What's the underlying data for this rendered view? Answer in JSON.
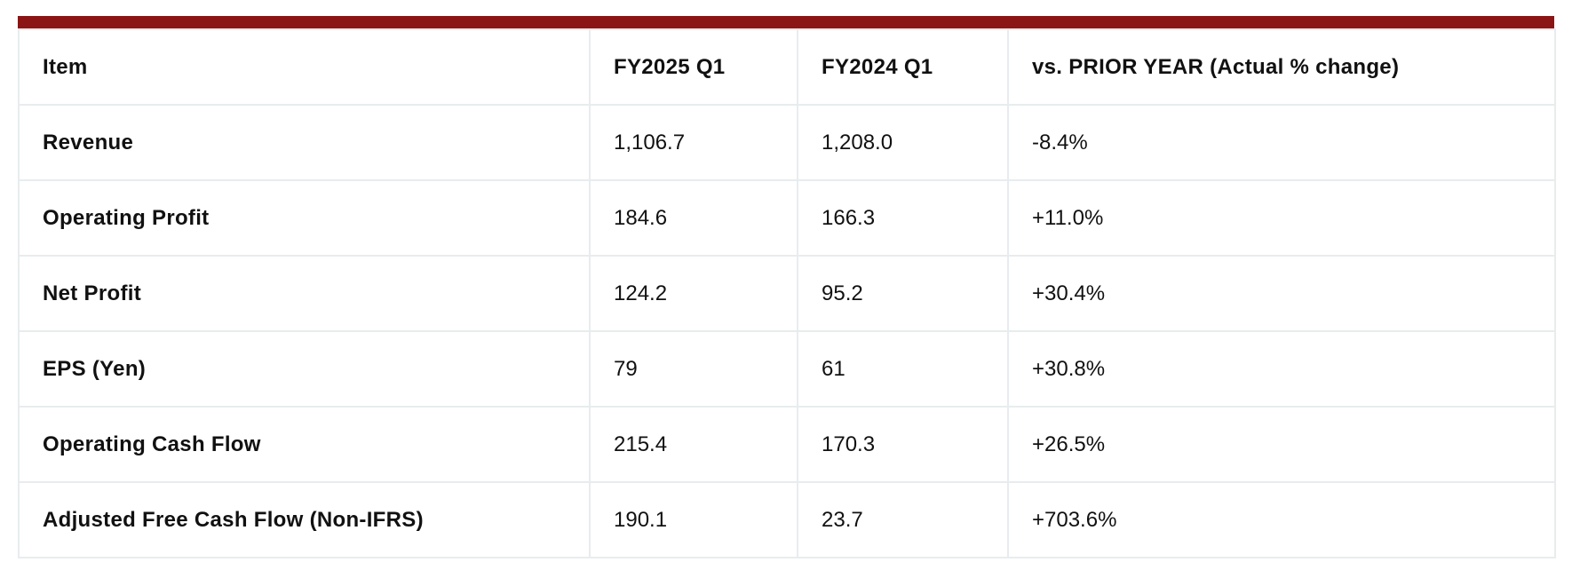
{
  "table": {
    "accent_color": "#8b1515",
    "border_color": "#e8ecee",
    "headers": [
      "Item",
      "FY2025 Q1",
      "FY2024 Q1",
      "vs. PRIOR YEAR (Actual % change)"
    ],
    "rows": [
      {
        "item": "Revenue",
        "fy2025": "1,106.7",
        "fy2024": "1,208.0",
        "change": "-8.4%"
      },
      {
        "item": "Operating Profit",
        "fy2025": "184.6",
        "fy2024": "166.3",
        "change": "+11.0%"
      },
      {
        "item": "Net Profit",
        "fy2025": "124.2",
        "fy2024": "95.2",
        "change": "+30.4%"
      },
      {
        "item": "EPS (Yen)",
        "fy2025": "79",
        "fy2024": "61",
        "change": "+30.8%"
      },
      {
        "item": "Operating Cash Flow",
        "fy2025": "215.4",
        "fy2024": "170.3",
        "change": "+26.5%"
      },
      {
        "item": "Adjusted Free Cash Flow (Non-IFRS)",
        "fy2025": "190.1",
        "fy2024": "23.7",
        "change": "+703.6%"
      }
    ]
  }
}
